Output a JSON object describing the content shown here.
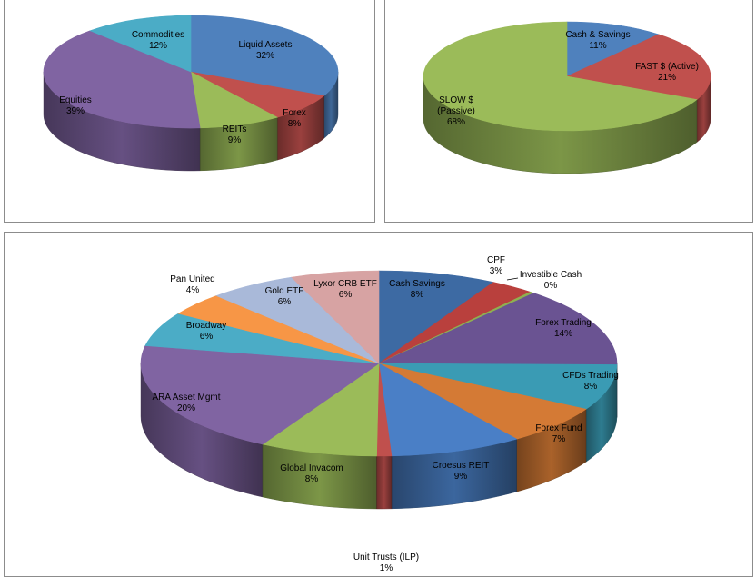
{
  "chart_data": [
    {
      "type": "pie",
      "style": "3d",
      "title": "",
      "start_angle_deg": 0,
      "slices": [
        {
          "label": "Liquid Assets",
          "value": 32,
          "value_label": "32%",
          "color": "#4f81bd"
        },
        {
          "label": "Forex",
          "value": 8,
          "value_label": "8%",
          "color": "#c0504d"
        },
        {
          "label": "REITs",
          "value": 9,
          "value_label": "9%",
          "color": "#9bbb59"
        },
        {
          "label": "Equities",
          "value": 39,
          "value_label": "39%",
          "color": "#8064a2"
        },
        {
          "label": "Commodities",
          "value": 12,
          "value_label": "12%",
          "color": "#4bacc6"
        }
      ]
    },
    {
      "type": "pie",
      "style": "3d",
      "title": "",
      "start_angle_deg": 0,
      "slices": [
        {
          "label": "Cash & Savings",
          "value": 11,
          "value_label": "11%",
          "color": "#4f81bd"
        },
        {
          "label": "FAST $ (Active)",
          "value": 21,
          "value_label": "21%",
          "color": "#c0504d"
        },
        {
          "label": "SLOW $ (Passive)",
          "value": 68,
          "value_label": "68%",
          "color": "#9bbb59"
        }
      ]
    },
    {
      "type": "pie",
      "style": "3d",
      "title": "",
      "start_angle_deg": 0,
      "slices": [
        {
          "label": "Cash Savings",
          "value": 8,
          "value_label": "8%",
          "color": "#3d6aa3"
        },
        {
          "label": "CPF",
          "value": 3,
          "value_label": "3%",
          "color": "#b9403d"
        },
        {
          "label": "Investible Cash",
          "value": 0.3,
          "value_label": "0%",
          "color": "#8fb050"
        },
        {
          "label": "Forex Trading",
          "value": 14,
          "value_label": "14%",
          "color": "#6a5392"
        },
        {
          "label": "CFDs Trading",
          "value": 8,
          "value_label": "8%",
          "color": "#3a9bb4"
        },
        {
          "label": "Forex Fund",
          "value": 7,
          "value_label": "7%",
          "color": "#d47a35"
        },
        {
          "label": "Croesus REIT",
          "value": 9,
          "value_label": "9%",
          "color": "#4a7fc6"
        },
        {
          "label": "Unit Trusts (ILP)",
          "value": 1,
          "value_label": "1%",
          "color": "#c0504d"
        },
        {
          "label": "Global Invacom",
          "value": 8,
          "value_label": "8%",
          "color": "#9bbb59"
        },
        {
          "label": "ARA Asset Mgmt",
          "value": 20,
          "value_label": "20%",
          "color": "#8064a2"
        },
        {
          "label": "Broadway",
          "value": 6,
          "value_label": "6%",
          "color": "#4bacc6"
        },
        {
          "label": "Pan United",
          "value": 4,
          "value_label": "4%",
          "color": "#f79646"
        },
        {
          "label": "Gold ETF",
          "value": 6,
          "value_label": "6%",
          "color": "#a9b9d9"
        },
        {
          "label": "Lyxor CRB ETF",
          "value": 6,
          "value_label": "6%",
          "color": "#d7a3a3"
        }
      ]
    }
  ]
}
